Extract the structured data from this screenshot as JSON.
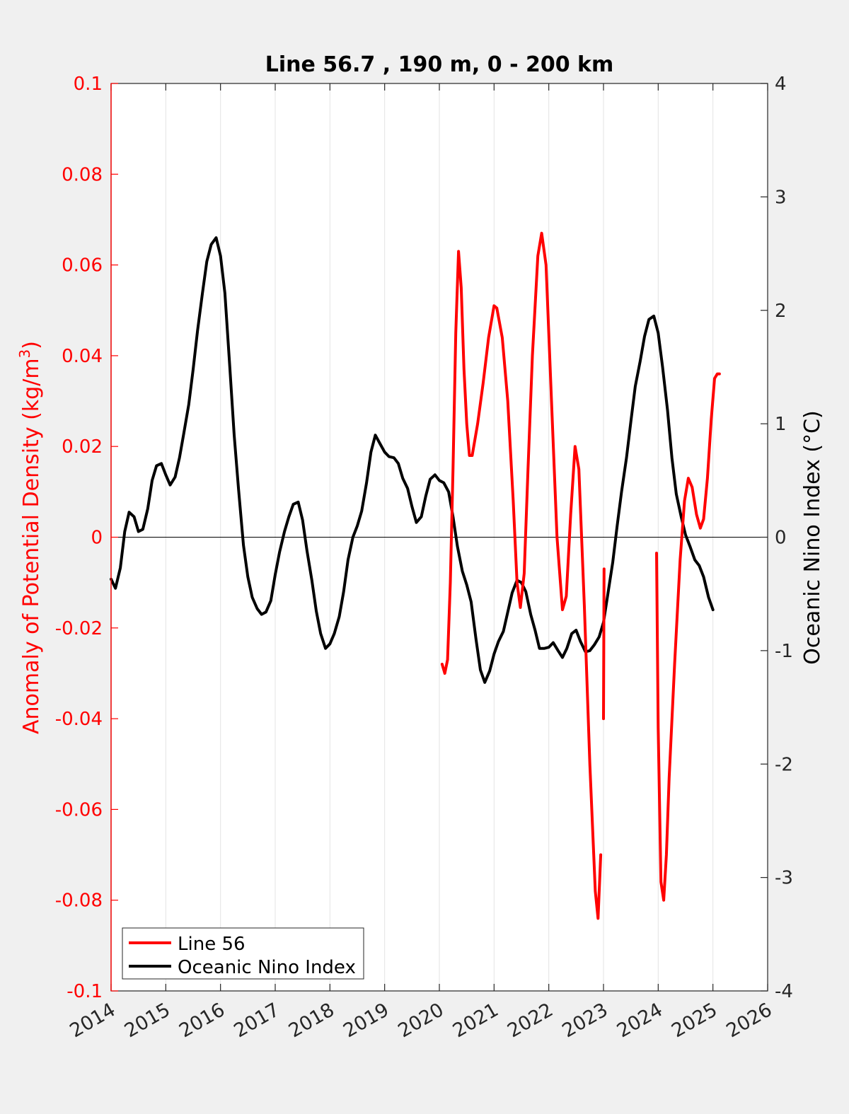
{
  "chart_data": {
    "type": "line",
    "title": "Line 56.7 , 190 m, 0 - 200 km",
    "ylabel_left": "Anomaly of Potential Density (kg/m",
    "ylabel_left_sup": "3",
    "ylabel_left_close": ")",
    "ylabel_right": "Oceanic Nino Index (°C)",
    "xlim": [
      2014,
      2026
    ],
    "ylim_left": [
      -0.1,
      0.1
    ],
    "ylim_right": [
      -4,
      4
    ],
    "x_ticks": [
      "2014",
      "2015",
      "2016",
      "2017",
      "2018",
      "2019",
      "2020",
      "2021",
      "2022",
      "2023",
      "2024",
      "2025",
      "2026"
    ],
    "y_left_ticks": [
      "0.1",
      "0.08",
      "0.06",
      "0.04",
      "0.02",
      "0",
      "-0.02",
      "-0.04",
      "-0.06",
      "-0.08",
      "-0.1"
    ],
    "y_right_ticks": [
      "4",
      "3",
      "2",
      "1",
      "0",
      "-1",
      "-2",
      "-3",
      "-4"
    ],
    "grid": "vertical",
    "legend_position": "bottom-left",
    "colors": {
      "line56": "#ff0000",
      "oni": "#000000",
      "left_axis": "#ff0000",
      "right_axis": "#000000"
    },
    "series": [
      {
        "name": "Line 56",
        "axis": "left",
        "segments": [
          [
            [
              2020.05,
              -0.028
            ],
            [
              2020.1,
              -0.03
            ],
            [
              2020.15,
              -0.027
            ],
            [
              2020.2,
              -0.01
            ],
            [
              2020.25,
              0.015
            ],
            [
              2020.3,
              0.045
            ],
            [
              2020.35,
              0.063
            ],
            [
              2020.4,
              0.055
            ],
            [
              2020.45,
              0.037
            ],
            [
              2020.5,
              0.025
            ],
            [
              2020.55,
              0.018
            ],
            [
              2020.6,
              0.018
            ],
            [
              2020.7,
              0.025
            ],
            [
              2020.8,
              0.034
            ],
            [
              2020.9,
              0.044
            ],
            [
              2021.0,
              0.051
            ],
            [
              2021.05,
              0.0505
            ],
            [
              2021.15,
              0.044
            ],
            [
              2021.25,
              0.03
            ],
            [
              2021.35,
              0.008
            ],
            [
              2021.42,
              -0.01
            ],
            [
              2021.48,
              -0.0155
            ],
            [
              2021.55,
              -0.008
            ],
            [
              2021.62,
              0.015
            ],
            [
              2021.7,
              0.04
            ],
            [
              2021.8,
              0.062
            ],
            [
              2021.87,
              0.067
            ],
            [
              2021.95,
              0.06
            ],
            [
              2022.05,
              0.03
            ],
            [
              2022.15,
              0.0
            ],
            [
              2022.25,
              -0.016
            ],
            [
              2022.32,
              -0.013
            ],
            [
              2022.4,
              0.005
            ],
            [
              2022.48,
              0.02
            ],
            [
              2022.55,
              0.015
            ],
            [
              2022.65,
              -0.015
            ],
            [
              2022.75,
              -0.05
            ],
            [
              2022.85,
              -0.078
            ],
            [
              2022.9,
              -0.084
            ],
            [
              2022.95,
              -0.07
            ]
          ],
          [
            [
              2023.0,
              -0.04
            ],
            [
              2023.01,
              -0.007
            ]
          ],
          [
            [
              2023.97,
              -0.0035
            ],
            [
              2024.0,
              -0.042
            ],
            [
              2024.05,
              -0.076
            ],
            [
              2024.1,
              -0.08
            ],
            [
              2024.15,
              -0.07
            ],
            [
              2024.2,
              -0.053
            ],
            [
              2024.3,
              -0.028
            ],
            [
              2024.4,
              -0.005
            ],
            [
              2024.48,
              0.008
            ],
            [
              2024.55,
              0.013
            ],
            [
              2024.62,
              0.011
            ],
            [
              2024.7,
              0.005
            ],
            [
              2024.77,
              0.002
            ],
            [
              2024.83,
              0.004
            ],
            [
              2024.9,
              0.013
            ],
            [
              2024.97,
              0.026
            ],
            [
              2025.03,
              0.035
            ],
            [
              2025.08,
              0.036
            ],
            [
              2025.12,
              0.036
            ]
          ]
        ]
      },
      {
        "name": "Oceanic Nino Index",
        "axis": "right",
        "segments": [
          [
            [
              2014.0,
              -0.37
            ],
            [
              2014.08,
              -0.45
            ],
            [
              2014.17,
              -0.27
            ],
            [
              2014.25,
              0.05
            ],
            [
              2014.33,
              0.22
            ],
            [
              2014.42,
              0.18
            ],
            [
              2014.5,
              0.05
            ],
            [
              2014.58,
              0.07
            ],
            [
              2014.67,
              0.25
            ],
            [
              2014.75,
              0.5
            ],
            [
              2014.83,
              0.63
            ],
            [
              2014.92,
              0.65
            ],
            [
              2015.0,
              0.55
            ],
            [
              2015.08,
              0.46
            ],
            [
              2015.17,
              0.53
            ],
            [
              2015.25,
              0.7
            ],
            [
              2015.33,
              0.92
            ],
            [
              2015.42,
              1.17
            ],
            [
              2015.5,
              1.48
            ],
            [
              2015.58,
              1.82
            ],
            [
              2015.67,
              2.15
            ],
            [
              2015.75,
              2.43
            ],
            [
              2015.83,
              2.58
            ],
            [
              2015.92,
              2.64
            ],
            [
              2016.0,
              2.48
            ],
            [
              2016.08,
              2.15
            ],
            [
              2016.17,
              1.5
            ],
            [
              2016.25,
              0.9
            ],
            [
              2016.33,
              0.42
            ],
            [
              2016.42,
              -0.07
            ],
            [
              2016.5,
              -0.35
            ],
            [
              2016.58,
              -0.53
            ],
            [
              2016.67,
              -0.63
            ],
            [
              2016.75,
              -0.68
            ],
            [
              2016.83,
              -0.66
            ],
            [
              2016.92,
              -0.56
            ],
            [
              2017.0,
              -0.33
            ],
            [
              2017.08,
              -0.13
            ],
            [
              2017.17,
              0.05
            ],
            [
              2017.25,
              0.18
            ],
            [
              2017.33,
              0.29
            ],
            [
              2017.42,
              0.31
            ],
            [
              2017.5,
              0.15
            ],
            [
              2017.58,
              -0.12
            ],
            [
              2017.67,
              -0.38
            ],
            [
              2017.75,
              -0.65
            ],
            [
              2017.83,
              -0.85
            ],
            [
              2017.92,
              -0.98
            ],
            [
              2018.0,
              -0.94
            ],
            [
              2018.08,
              -0.85
            ],
            [
              2018.17,
              -0.7
            ],
            [
              2018.25,
              -0.48
            ],
            [
              2018.33,
              -0.2
            ],
            [
              2018.42,
              0.0
            ],
            [
              2018.5,
              0.1
            ],
            [
              2018.58,
              0.23
            ],
            [
              2018.67,
              0.48
            ],
            [
              2018.75,
              0.75
            ],
            [
              2018.83,
              0.9
            ],
            [
              2018.92,
              0.82
            ],
            [
              2019.0,
              0.75
            ],
            [
              2019.08,
              0.71
            ],
            [
              2019.17,
              0.7
            ],
            [
              2019.25,
              0.65
            ],
            [
              2019.33,
              0.52
            ],
            [
              2019.42,
              0.43
            ],
            [
              2019.5,
              0.27
            ],
            [
              2019.58,
              0.13
            ],
            [
              2019.67,
              0.18
            ],
            [
              2019.75,
              0.36
            ],
            [
              2019.83,
              0.51
            ],
            [
              2019.92,
              0.55
            ],
            [
              2020.0,
              0.5
            ],
            [
              2020.08,
              0.48
            ],
            [
              2020.17,
              0.4
            ],
            [
              2020.25,
              0.18
            ],
            [
              2020.33,
              -0.08
            ],
            [
              2020.42,
              -0.3
            ],
            [
              2020.5,
              -0.42
            ],
            [
              2020.58,
              -0.57
            ],
            [
              2020.67,
              -0.9
            ],
            [
              2020.75,
              -1.17
            ],
            [
              2020.83,
              -1.28
            ],
            [
              2020.92,
              -1.18
            ],
            [
              2021.0,
              -1.03
            ],
            [
              2021.08,
              -0.92
            ],
            [
              2021.17,
              -0.83
            ],
            [
              2021.25,
              -0.66
            ],
            [
              2021.33,
              -0.49
            ],
            [
              2021.42,
              -0.38
            ],
            [
              2021.5,
              -0.4
            ],
            [
              2021.58,
              -0.48
            ],
            [
              2021.67,
              -0.68
            ],
            [
              2021.75,
              -0.82
            ],
            [
              2021.83,
              -0.98
            ],
            [
              2021.92,
              -0.98
            ],
            [
              2022.0,
              -0.97
            ],
            [
              2022.08,
              -0.93
            ],
            [
              2022.17,
              -1.0
            ],
            [
              2022.25,
              -1.06
            ],
            [
              2022.33,
              -0.98
            ],
            [
              2022.42,
              -0.85
            ],
            [
              2022.5,
              -0.82
            ],
            [
              2022.58,
              -0.92
            ],
            [
              2022.67,
              -1.01
            ],
            [
              2022.75,
              -1.0
            ],
            [
              2022.83,
              -0.95
            ],
            [
              2022.92,
              -0.88
            ],
            [
              2023.0,
              -0.75
            ],
            [
              2023.08,
              -0.5
            ],
            [
              2023.17,
              -0.22
            ],
            [
              2023.25,
              0.1
            ],
            [
              2023.33,
              0.4
            ],
            [
              2023.42,
              0.7
            ],
            [
              2023.5,
              1.02
            ],
            [
              2023.58,
              1.33
            ],
            [
              2023.67,
              1.55
            ],
            [
              2023.75,
              1.77
            ],
            [
              2023.83,
              1.92
            ],
            [
              2023.92,
              1.95
            ],
            [
              2024.0,
              1.8
            ],
            [
              2024.08,
              1.5
            ],
            [
              2024.17,
              1.12
            ],
            [
              2024.25,
              0.7
            ],
            [
              2024.33,
              0.38
            ],
            [
              2024.42,
              0.18
            ],
            [
              2024.5,
              0.02
            ],
            [
              2024.58,
              -0.08
            ],
            [
              2024.67,
              -0.2
            ],
            [
              2024.75,
              -0.25
            ],
            [
              2024.83,
              -0.35
            ],
            [
              2024.92,
              -0.53
            ],
            [
              2025.0,
              -0.64
            ]
          ]
        ]
      }
    ]
  }
}
